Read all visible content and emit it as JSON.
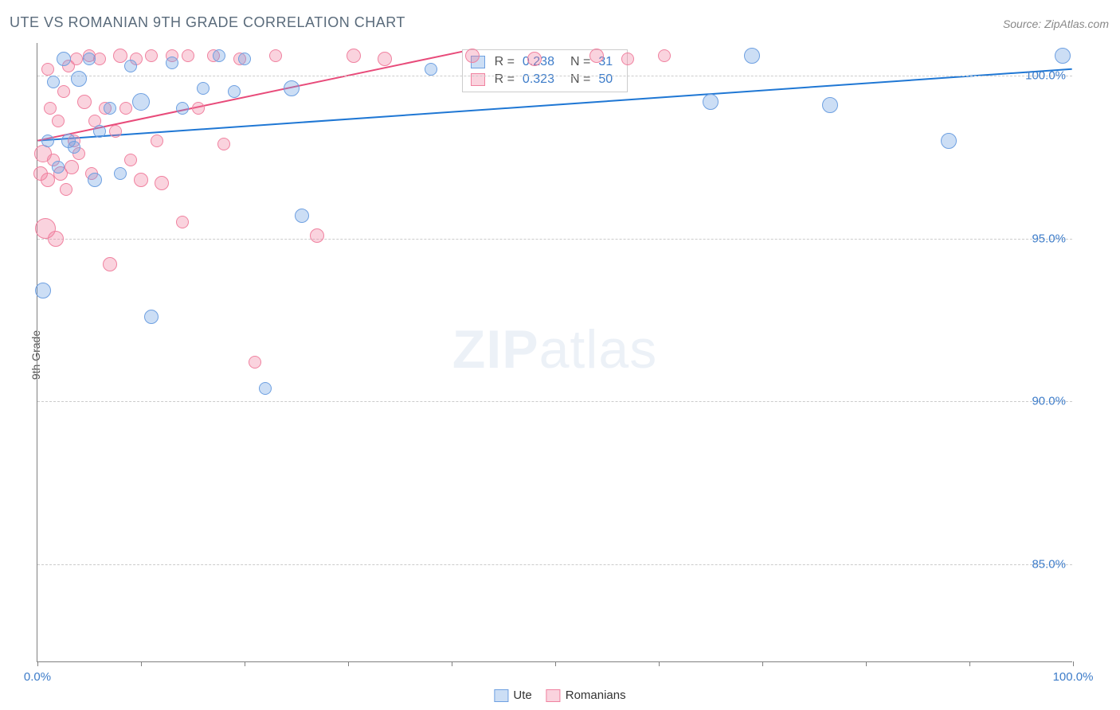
{
  "chart": {
    "type": "scatter",
    "title": "UTE VS ROMANIAN 9TH GRADE CORRELATION CHART",
    "source_label": "Source: ZipAtlas.com",
    "watermark": {
      "bold": "ZIP",
      "light": "atlas"
    },
    "ylabel": "9th Grade",
    "background_color": "#ffffff",
    "grid_color": "#cccccc",
    "axis_color": "#808080",
    "text_color": "#5a6b7b",
    "tick_label_color": "#3d7cc9",
    "title_fontsize": 18,
    "label_fontsize": 14,
    "tick_fontsize": 15,
    "xlim": [
      0,
      100
    ],
    "ylim": [
      82,
      101
    ],
    "ytick_positions": [
      85,
      90,
      95,
      100
    ],
    "ytick_labels": [
      "85.0%",
      "90.0%",
      "95.0%",
      "100.0%"
    ],
    "xtick_positions": [
      0,
      10,
      20,
      30,
      40,
      50,
      60,
      70,
      80,
      90,
      100
    ],
    "xtick_labels": {
      "0": "0.0%",
      "100": "100.0%"
    },
    "series": [
      {
        "name": "Ute",
        "color_fill": "rgba(110,160,225,0.35)",
        "color_stroke": "#6ea0e1",
        "marker_size": 16,
        "marker_style": "circle",
        "trend": {
          "x1": 0,
          "y1": 98.0,
          "x2": 100,
          "y2": 100.2,
          "color": "#1f77d4",
          "width": 2
        },
        "R": "0.238",
        "N": "31",
        "points": [
          {
            "x": 0.5,
            "y": 93.4,
            "r": 10
          },
          {
            "x": 1.0,
            "y": 98.0,
            "r": 8
          },
          {
            "x": 1.5,
            "y": 99.8,
            "r": 8
          },
          {
            "x": 2.0,
            "y": 97.2,
            "r": 8
          },
          {
            "x": 2.5,
            "y": 100.5,
            "r": 9
          },
          {
            "x": 3.0,
            "y": 98.0,
            "r": 9
          },
          {
            "x": 3.5,
            "y": 97.8,
            "r": 8
          },
          {
            "x": 4.0,
            "y": 99.9,
            "r": 10
          },
          {
            "x": 5.0,
            "y": 100.5,
            "r": 8
          },
          {
            "x": 5.5,
            "y": 96.8,
            "r": 9
          },
          {
            "x": 6.0,
            "y": 98.3,
            "r": 8
          },
          {
            "x": 7.0,
            "y": 99.0,
            "r": 8
          },
          {
            "x": 8.0,
            "y": 97.0,
            "r": 8
          },
          {
            "x": 9.0,
            "y": 100.3,
            "r": 8
          },
          {
            "x": 10.0,
            "y": 99.2,
            "r": 11
          },
          {
            "x": 11.0,
            "y": 92.6,
            "r": 9
          },
          {
            "x": 13.0,
            "y": 100.4,
            "r": 8
          },
          {
            "x": 14.0,
            "y": 99.0,
            "r": 8
          },
          {
            "x": 16.0,
            "y": 99.6,
            "r": 8
          },
          {
            "x": 17.5,
            "y": 100.6,
            "r": 8
          },
          {
            "x": 19.0,
            "y": 99.5,
            "r": 8
          },
          {
            "x": 20.0,
            "y": 100.5,
            "r": 8
          },
          {
            "x": 22.0,
            "y": 90.4,
            "r": 8
          },
          {
            "x": 24.5,
            "y": 99.6,
            "r": 10
          },
          {
            "x": 25.5,
            "y": 95.7,
            "r": 9
          },
          {
            "x": 38.0,
            "y": 100.2,
            "r": 8
          },
          {
            "x": 65.0,
            "y": 99.2,
            "r": 10
          },
          {
            "x": 69.0,
            "y": 100.6,
            "r": 10
          },
          {
            "x": 76.5,
            "y": 99.1,
            "r": 10
          },
          {
            "x": 88.0,
            "y": 98.0,
            "r": 10
          },
          {
            "x": 99.0,
            "y": 100.6,
            "r": 10
          }
        ]
      },
      {
        "name": "Romanians",
        "color_fill": "rgba(240,130,160,0.35)",
        "color_stroke": "#f082a0",
        "marker_size": 16,
        "marker_style": "circle",
        "trend": {
          "x1": 0,
          "y1": 98.0,
          "x2": 42,
          "y2": 100.8,
          "color": "#e84b7a",
          "width": 2
        },
        "R": "0.323",
        "N": "50",
        "points": [
          {
            "x": 0.3,
            "y": 97.0,
            "r": 9
          },
          {
            "x": 0.5,
            "y": 97.6,
            "r": 11
          },
          {
            "x": 0.8,
            "y": 95.3,
            "r": 13
          },
          {
            "x": 1.0,
            "y": 96.8,
            "r": 9
          },
          {
            "x": 1.2,
            "y": 99.0,
            "r": 8
          },
          {
            "x": 1.5,
            "y": 97.4,
            "r": 8
          },
          {
            "x": 1.8,
            "y": 95.0,
            "r": 10
          },
          {
            "x": 2.0,
            "y": 98.6,
            "r": 8
          },
          {
            "x": 2.2,
            "y": 97.0,
            "r": 9
          },
          {
            "x": 2.5,
            "y": 99.5,
            "r": 8
          },
          {
            "x": 2.8,
            "y": 96.5,
            "r": 8
          },
          {
            "x": 3.0,
            "y": 100.3,
            "r": 8
          },
          {
            "x": 3.3,
            "y": 97.2,
            "r": 9
          },
          {
            "x": 3.5,
            "y": 98.0,
            "r": 8
          },
          {
            "x": 3.8,
            "y": 100.5,
            "r": 8
          },
          {
            "x": 4.0,
            "y": 97.6,
            "r": 8
          },
          {
            "x": 4.5,
            "y": 99.2,
            "r": 9
          },
          {
            "x": 5.0,
            "y": 100.6,
            "r": 8
          },
          {
            "x": 5.2,
            "y": 97.0,
            "r": 8
          },
          {
            "x": 5.5,
            "y": 98.6,
            "r": 8
          },
          {
            "x": 6.0,
            "y": 100.5,
            "r": 8
          },
          {
            "x": 6.5,
            "y": 99.0,
            "r": 8
          },
          {
            "x": 7.0,
            "y": 94.2,
            "r": 9
          },
          {
            "x": 7.5,
            "y": 98.3,
            "r": 8
          },
          {
            "x": 8.0,
            "y": 100.6,
            "r": 9
          },
          {
            "x": 8.5,
            "y": 99.0,
            "r": 8
          },
          {
            "x": 9.0,
            "y": 97.4,
            "r": 8
          },
          {
            "x": 9.5,
            "y": 100.5,
            "r": 8
          },
          {
            "x": 10.0,
            "y": 96.8,
            "r": 9
          },
          {
            "x": 11.0,
            "y": 100.6,
            "r": 8
          },
          {
            "x": 11.5,
            "y": 98.0,
            "r": 8
          },
          {
            "x": 12.0,
            "y": 96.7,
            "r": 9
          },
          {
            "x": 13.0,
            "y": 100.6,
            "r": 8
          },
          {
            "x": 14.0,
            "y": 95.5,
            "r": 8
          },
          {
            "x": 14.5,
            "y": 100.6,
            "r": 8
          },
          {
            "x": 15.5,
            "y": 99.0,
            "r": 8
          },
          {
            "x": 17.0,
            "y": 100.6,
            "r": 8
          },
          {
            "x": 18.0,
            "y": 97.9,
            "r": 8
          },
          {
            "x": 19.5,
            "y": 100.5,
            "r": 8
          },
          {
            "x": 21.0,
            "y": 91.2,
            "r": 8
          },
          {
            "x": 23.0,
            "y": 100.6,
            "r": 8
          },
          {
            "x": 27.0,
            "y": 95.1,
            "r": 9
          },
          {
            "x": 30.5,
            "y": 100.6,
            "r": 9
          },
          {
            "x": 33.5,
            "y": 100.5,
            "r": 9
          },
          {
            "x": 42.0,
            "y": 100.6,
            "r": 9
          },
          {
            "x": 48.0,
            "y": 100.5,
            "r": 9
          },
          {
            "x": 54.0,
            "y": 100.6,
            "r": 9
          },
          {
            "x": 57.0,
            "y": 100.5,
            "r": 8
          },
          {
            "x": 60.5,
            "y": 100.6,
            "r": 8
          },
          {
            "x": 1.0,
            "y": 100.2,
            "r": 8
          }
        ]
      }
    ],
    "stats_box": {
      "R_label": "R =",
      "N_label": "N ="
    },
    "legend": {
      "position": "bottom",
      "items": [
        "Ute",
        "Romanians"
      ]
    }
  }
}
